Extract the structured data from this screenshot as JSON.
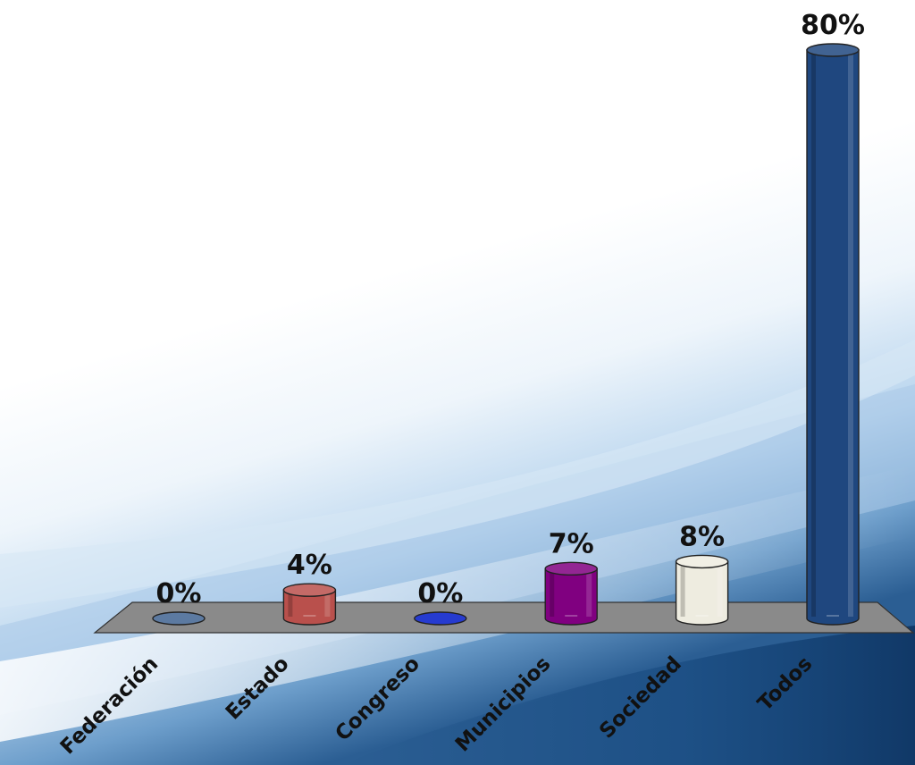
{
  "chart_data": {
    "type": "bar",
    "style": "3d-cylinder",
    "categories": [
      "Federación",
      "Estado",
      "Congreso",
      "Municipios",
      "Sociedad",
      "Todos"
    ],
    "values": [
      0,
      4,
      0,
      7,
      8,
      80
    ],
    "value_labels": [
      "0%",
      "4%",
      "0%",
      "7%",
      "8%",
      "80%"
    ],
    "colors": [
      "#3f6390",
      "#b9504c",
      "#0018c8",
      "#800080",
      "#eeece0",
      "#1f477f"
    ],
    "floor_color": "#8a8a8a",
    "ylim": [
      0,
      80
    ],
    "grid": false,
    "legend": "none",
    "xlabel": "",
    "ylabel": ""
  }
}
